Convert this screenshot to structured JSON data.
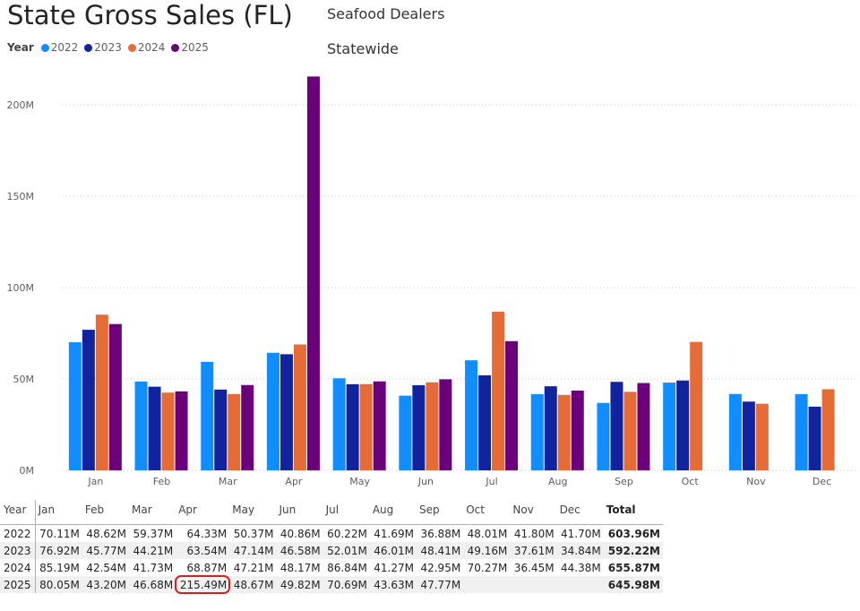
{
  "header": {
    "title": "State Gross Sales (FL)",
    "subtitle1": "Seafood Dealers",
    "subtitle2": "Statewide"
  },
  "legend": {
    "title": "Year",
    "items": [
      {
        "label": "2022",
        "color": "#118DFF"
      },
      {
        "label": "2023",
        "color": "#12239E"
      },
      {
        "label": "2024",
        "color": "#E66C37"
      },
      {
        "label": "2025",
        "color": "#6B007B"
      }
    ]
  },
  "chart_data": {
    "type": "bar",
    "categories": [
      "Jan",
      "Feb",
      "Mar",
      "Apr",
      "May",
      "Jun",
      "Jul",
      "Aug",
      "Sep",
      "Oct",
      "Nov",
      "Dec"
    ],
    "series": [
      {
        "name": "2022",
        "color": "#118DFF",
        "values": [
          70.11,
          48.62,
          59.37,
          64.33,
          50.37,
          40.86,
          60.22,
          41.69,
          36.88,
          48.01,
          41.8,
          41.7
        ]
      },
      {
        "name": "2023",
        "color": "#12239E",
        "values": [
          76.92,
          45.77,
          44.21,
          63.54,
          47.14,
          46.58,
          52.01,
          46.01,
          48.41,
          49.16,
          37.61,
          34.84
        ]
      },
      {
        "name": "2024",
        "color": "#E66C37",
        "values": [
          85.19,
          42.54,
          41.73,
          68.87,
          47.21,
          48.17,
          86.84,
          41.27,
          42.95,
          70.27,
          36.45,
          44.38
        ]
      },
      {
        "name": "2025",
        "color": "#6B007B",
        "values": [
          80.05,
          43.2,
          46.68,
          215.49,
          48.67,
          49.82,
          70.69,
          43.63,
          47.77,
          null,
          null,
          null
        ]
      }
    ],
    "yticks": [
      "0M",
      "50M",
      "100M",
      "150M",
      "200M"
    ],
    "ylim": [
      0,
      216
    ],
    "grid": true,
    "legend_position": "top-left"
  },
  "table": {
    "headers": [
      "Year",
      "Jan",
      "Feb",
      "Mar",
      "Apr",
      "May",
      "Jun",
      "Jul",
      "Aug",
      "Sep",
      "Oct",
      "Nov",
      "Dec",
      "Total"
    ],
    "rows": [
      [
        "2022",
        "70.11M",
        "48.62M",
        "59.37M",
        "64.33M",
        "50.37M",
        "40.86M",
        "60.22M",
        "41.69M",
        "36.88M",
        "48.01M",
        "41.80M",
        "41.70M",
        "603.96M"
      ],
      [
        "2023",
        "76.92M",
        "45.77M",
        "44.21M",
        "63.54M",
        "47.14M",
        "46.58M",
        "52.01M",
        "46.01M",
        "48.41M",
        "49.16M",
        "37.61M",
        "34.84M",
        "592.22M"
      ],
      [
        "2024",
        "85.19M",
        "42.54M",
        "41.73M",
        "68.87M",
        "47.21M",
        "48.17M",
        "86.84M",
        "41.27M",
        "42.95M",
        "70.27M",
        "36.45M",
        "44.38M",
        "655.87M"
      ],
      [
        "2025",
        "80.05M",
        "43.20M",
        "46.68M",
        "215.49M",
        "48.67M",
        "49.82M",
        "70.69M",
        "43.63M",
        "47.77M",
        "",
        "",
        "",
        "645.98M"
      ]
    ]
  }
}
